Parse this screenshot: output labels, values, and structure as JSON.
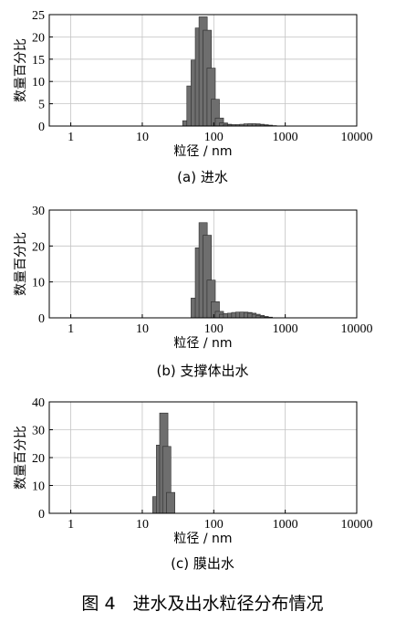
{
  "figure_caption": "图 4　进水及出水粒径分布情况",
  "chart_data": [
    {
      "type": "bar",
      "caption": "(a) 进水",
      "xlabel": "粒径 / nm",
      "ylabel": "数量百分比",
      "xscale": "log",
      "xlim": [
        0.5,
        10000
      ],
      "ylim": [
        0,
        25
      ],
      "xticks": [
        1,
        10,
        100,
        1000,
        10000
      ],
      "xtick_labels": [
        "1",
        "10",
        "100",
        "1000",
        "10000"
      ],
      "yticks": [
        0,
        5,
        10,
        15,
        20,
        25
      ],
      "ytick_labels": [
        "0",
        "5",
        "10",
        "15",
        "20",
        "25"
      ],
      "grid": true,
      "x": [
        42,
        48,
        55,
        63,
        71,
        81,
        92,
        105,
        120,
        137,
        156,
        178,
        203,
        231,
        264,
        301,
        343,
        391,
        446,
        509,
        580,
        661
      ],
      "values": [
        1.2,
        9.0,
        14.8,
        22.0,
        24.5,
        21.5,
        13.0,
        6.0,
        1.8,
        0.7,
        0.4,
        0.3,
        0.3,
        0.3,
        0.4,
        0.5,
        0.5,
        0.5,
        0.4,
        0.3,
        0.2,
        0.1
      ]
    },
    {
      "type": "bar",
      "caption": "(b) 支撑体出水",
      "xlabel": "粒径 / nm",
      "ylabel": "数量百分比",
      "xscale": "log",
      "xlim": [
        0.5,
        10000
      ],
      "ylim": [
        0,
        30
      ],
      "xticks": [
        1,
        10,
        100,
        1000,
        10000
      ],
      "xtick_labels": [
        "1",
        "10",
        "100",
        "1000",
        "10000"
      ],
      "yticks": [
        0,
        10,
        20,
        30
      ],
      "ytick_labels": [
        "0",
        "10",
        "20",
        "30"
      ],
      "grid": true,
      "x": [
        55,
        63,
        71,
        81,
        92,
        105,
        120,
        137,
        156,
        178,
        203,
        231,
        264,
        301,
        343,
        391,
        446,
        509,
        580
      ],
      "values": [
        5.5,
        19.5,
        26.5,
        23.0,
        10.5,
        4.5,
        1.8,
        1.0,
        1.2,
        1.3,
        1.5,
        1.6,
        1.6,
        1.5,
        1.3,
        1.0,
        0.7,
        0.4,
        0.2
      ]
    },
    {
      "type": "bar",
      "caption": "(c) 膜出水",
      "xlabel": "粒径 / nm",
      "ylabel": "数量百分比",
      "xscale": "log",
      "xlim": [
        0.5,
        10000
      ],
      "ylim": [
        0,
        40
      ],
      "xticks": [
        1,
        10,
        100,
        1000,
        10000
      ],
      "xtick_labels": [
        "1",
        "10",
        "100",
        "1000",
        "10000"
      ],
      "yticks": [
        0,
        10,
        20,
        30,
        40
      ],
      "ytick_labels": [
        "0",
        "10",
        "20",
        "30",
        "40"
      ],
      "grid": true,
      "x": [
        16,
        18,
        20,
        22,
        25
      ],
      "values": [
        6.0,
        24.5,
        36.0,
        24.0,
        7.5
      ]
    }
  ]
}
